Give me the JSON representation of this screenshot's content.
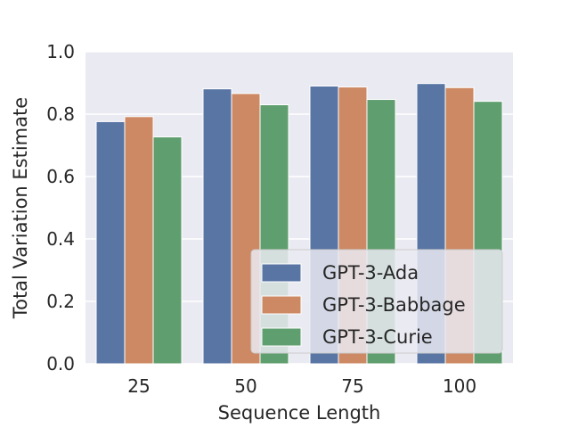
{
  "chart_data": {
    "type": "bar",
    "title": "",
    "xlabel": "Sequence Length",
    "ylabel": "Total Variation Estimate",
    "categories": [
      "25",
      "50",
      "75",
      "100"
    ],
    "ylim": [
      0,
      1.0
    ],
    "yticks": [
      "0.0",
      "0.2",
      "0.4",
      "0.6",
      "0.8",
      "1.0"
    ],
    "grid": true,
    "legend_position": "lower-right",
    "series": [
      {
        "name": "GPT-3-Ada",
        "color": "#5875a4",
        "values": [
          0.776,
          0.881,
          0.89,
          0.898
        ]
      },
      {
        "name": "GPT-3-Babbage",
        "color": "#cc8963",
        "values": [
          0.792,
          0.866,
          0.887,
          0.885
        ]
      },
      {
        "name": "GPT-3-Curie",
        "color": "#5f9e6e",
        "values": [
          0.727,
          0.83,
          0.847,
          0.841
        ]
      }
    ]
  }
}
